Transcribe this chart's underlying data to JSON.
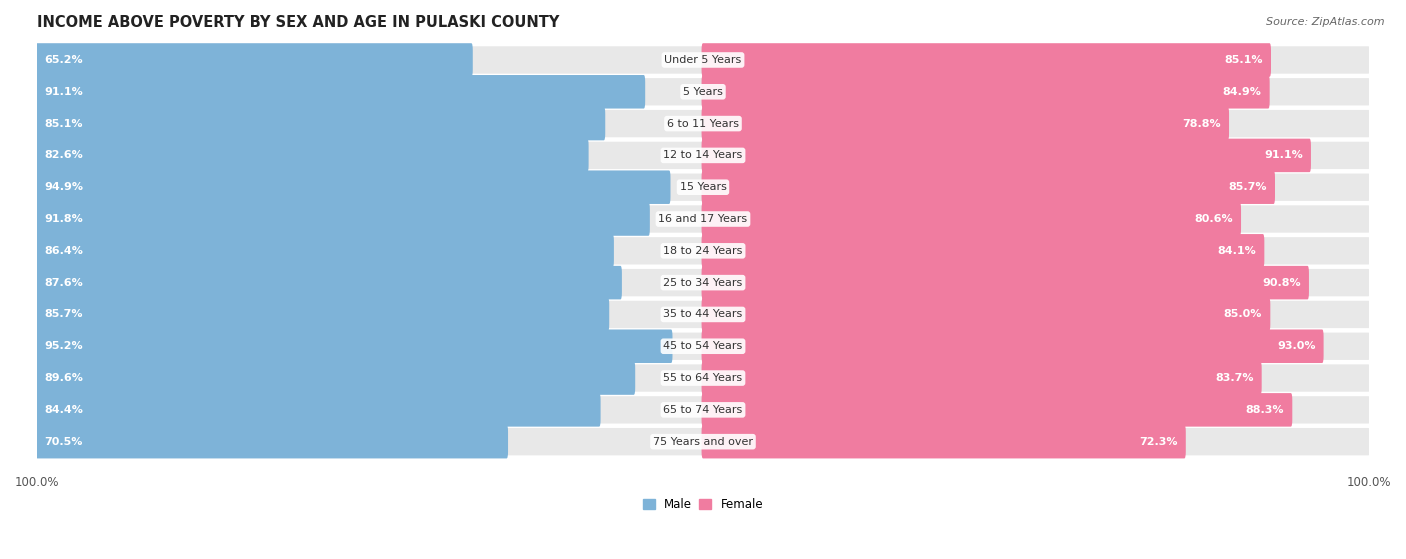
{
  "title": "INCOME ABOVE POVERTY BY SEX AND AGE IN PULASKI COUNTY",
  "source": "Source: ZipAtlas.com",
  "categories": [
    "Under 5 Years",
    "5 Years",
    "6 to 11 Years",
    "12 to 14 Years",
    "15 Years",
    "16 and 17 Years",
    "18 to 24 Years",
    "25 to 34 Years",
    "35 to 44 Years",
    "45 to 54 Years",
    "55 to 64 Years",
    "65 to 74 Years",
    "75 Years and over"
  ],
  "male_values": [
    65.2,
    91.1,
    85.1,
    82.6,
    94.9,
    91.8,
    86.4,
    87.6,
    85.7,
    95.2,
    89.6,
    84.4,
    70.5
  ],
  "female_values": [
    85.1,
    84.9,
    78.8,
    91.1,
    85.7,
    80.6,
    84.1,
    90.8,
    85.0,
    93.0,
    83.7,
    88.3,
    72.3
  ],
  "male_color": "#7eb3d8",
  "female_color": "#f07ca0",
  "male_color_light": "#b8d4ea",
  "female_color_light": "#f8c0d0",
  "bg_row_color": "#e8e8e8",
  "background_color": "#ffffff",
  "max_val": 100.0,
  "title_fontsize": 10.5,
  "label_fontsize": 8.0,
  "value_fontsize": 8.0,
  "tick_fontsize": 8.5,
  "source_fontsize": 8.0
}
